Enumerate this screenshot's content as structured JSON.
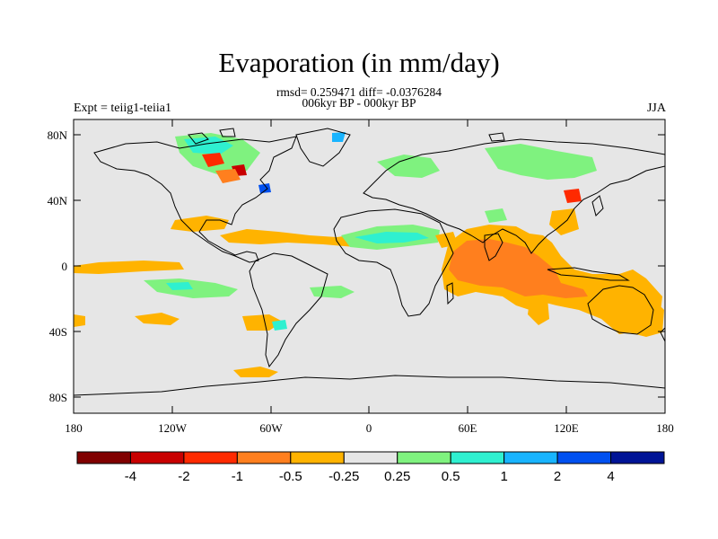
{
  "title": "Evaporation (in mm/day)",
  "stats_line": "rmsd= 0.259471 diff= -0.0376284",
  "period_line": "006kyr BP - 000kyr BP",
  "experiment_label": "Expt = teiig1-teiia1",
  "season_label": "JJA",
  "map": {
    "background_color": "#e6e6e6",
    "lon_ticks": [
      "180",
      "120W",
      "60W",
      "0",
      "60E",
      "120E",
      "180"
    ],
    "lat_ticks": [
      "80N",
      "40N",
      "0",
      "40S",
      "80S"
    ]
  },
  "colorbar": {
    "colors": [
      "#800000",
      "#c80000",
      "#ff2a00",
      "#ff7f1e",
      "#ffb300",
      "#e6e6e6",
      "#7ff27f",
      "#2ff0d0",
      "#18b4ff",
      "#0050f0",
      "#001496"
    ],
    "labels": [
      "-4",
      "-2",
      "-1",
      "-0.5",
      "-0.25",
      "0.25",
      "0.5",
      "1",
      "2",
      "4"
    ]
  }
}
